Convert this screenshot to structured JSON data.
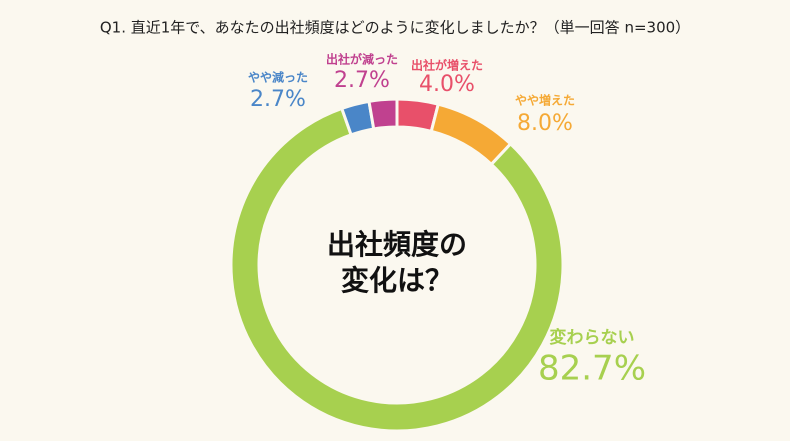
{
  "chart_data": {
    "type": "donut",
    "title": "Q1. 直近1年で、あなたの出社頻度はどのように変化しましたか？（単一回答  n=300）",
    "center_label": [
      "出社頻度の",
      "変化は？"
    ],
    "categories": [
      "出社が増えた",
      "やや増えた",
      "変わらない",
      "やや減った",
      "出社が減った"
    ],
    "values": [
      4.0,
      8.0,
      82.7,
      2.7,
      2.7
    ],
    "value_labels": [
      "4.0%",
      "8.0%",
      "82.7%",
      "2.7%",
      "2.7%"
    ],
    "colors": [
      "#e8506a",
      "#f5a935",
      "#a7d04f",
      "#4a86c8",
      "#c0418f"
    ]
  }
}
